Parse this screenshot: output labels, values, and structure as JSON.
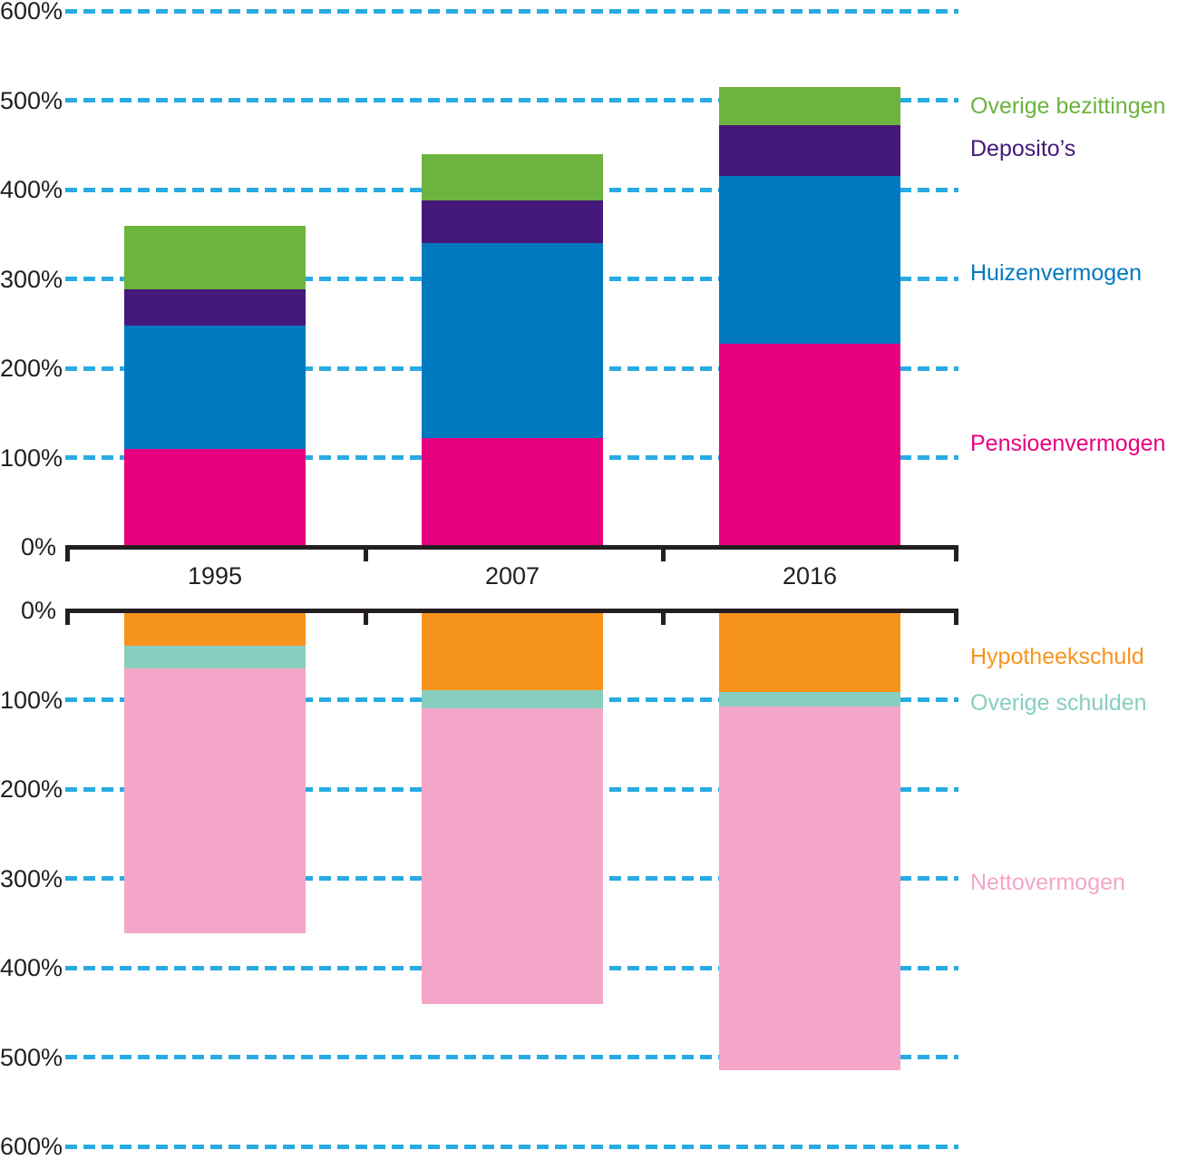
{
  "figure": {
    "description": "Two stacked bar charts of Dutch household balance sheet as percentage, assets above the axis and debts/net worth below",
    "unit": "%"
  },
  "colors": {
    "pensioenvermogen": "#E6007E",
    "huizenvermogen": "#0079C1",
    "depositos": "#45197B",
    "overige_bezittingen": "#6CB33F",
    "hypotheekschuld": "#F7941E",
    "overige_schulden": "#87CEBF",
    "nettovermogen": "#F4A6C8",
    "gridline": "#29ABE2",
    "axis": "#231F20",
    "text": "#231F20"
  },
  "chart_data": [
    {
      "id": "assets",
      "type": "bar",
      "stacked": true,
      "direction": "up",
      "ylim": [
        0,
        600
      ],
      "tick_interval": 100,
      "tick_labels": [
        "0%",
        "100%",
        "200%",
        "300%",
        "400%",
        "500%",
        "600%"
      ],
      "grid": "dashed-horizontal",
      "legend_position": "right",
      "categories": [
        "1995",
        "2007",
        "2016"
      ],
      "show_category_labels": true,
      "series": [
        {
          "name": "Pensioenvermogen",
          "color_key": "pensioenvermogen",
          "values": [
            110,
            122,
            227
          ]
        },
        {
          "name": "Huizenvermogen",
          "color_key": "huizenvermogen",
          "values": [
            138,
            218,
            188
          ]
        },
        {
          "name": "Deposito’s",
          "color_key": "depositos",
          "values": [
            40,
            48,
            57
          ]
        },
        {
          "name": "Overige bezittingen",
          "color_key": "overige_bezittingen",
          "values": [
            71,
            52,
            43
          ]
        }
      ]
    },
    {
      "id": "debts-networth",
      "type": "bar",
      "stacked": true,
      "direction": "down",
      "ylim": [
        0,
        600
      ],
      "tick_interval": 100,
      "tick_labels": [
        "0%",
        "100%",
        "200%",
        "300%",
        "400%",
        "500%",
        "600%"
      ],
      "grid": "dashed-horizontal",
      "legend_position": "right",
      "categories": [
        "1995",
        "2007",
        "2016"
      ],
      "show_category_labels": false,
      "series": [
        {
          "name": "Hypotheekschuld",
          "color_key": "hypotheekschuld",
          "values": [
            40,
            89,
            91
          ]
        },
        {
          "name": "Overige schulden",
          "color_key": "overige_schulden",
          "values": [
            25,
            21,
            17
          ]
        },
        {
          "name": "Nettovermogen",
          "color_key": "nettovermogen",
          "values": [
            296,
            331,
            407
          ]
        }
      ]
    }
  ],
  "legend": {
    "top_items": [
      {
        "label": "Overige bezittingen",
        "color_key": "overige_bezittingen",
        "slug": "overige-bezittingen"
      },
      {
        "label": "Deposito’s",
        "color_key": "depositos",
        "slug": "depositos"
      },
      {
        "label": "Huizenvermogen",
        "color_key": "huizenvermogen",
        "slug": "huizenvermogen"
      },
      {
        "label": "Pensioenvermogen",
        "color_key": "pensioenvermogen",
        "slug": "pensioenvermogen"
      }
    ],
    "bottom_items": [
      {
        "label": "Hypotheekschuld",
        "color_key": "hypotheekschuld",
        "slug": "hypotheekschuld"
      },
      {
        "label": "Overige schulden",
        "color_key": "overige_schulden",
        "slug": "overige-schulden"
      },
      {
        "label": "Nettovermogen",
        "color_key": "nettovermogen",
        "slug": "nettovermogen"
      }
    ]
  }
}
